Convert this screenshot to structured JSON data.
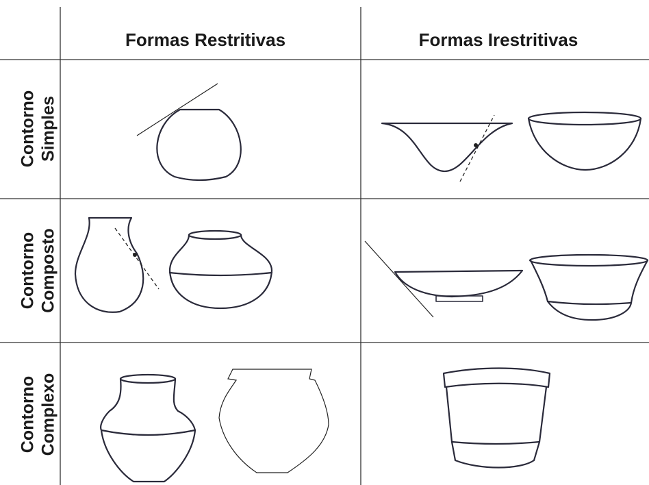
{
  "table": {
    "columns": [
      "Formas Restritivas",
      "Formas Irestritivas"
    ],
    "rows": [
      {
        "label_lines": [
          "Contorno",
          "Simples"
        ]
      },
      {
        "label_lines": [
          "Contorno",
          "Composto"
        ]
      },
      {
        "label_lines": [
          "Contorno",
          "Complexo"
        ]
      }
    ]
  }
}
